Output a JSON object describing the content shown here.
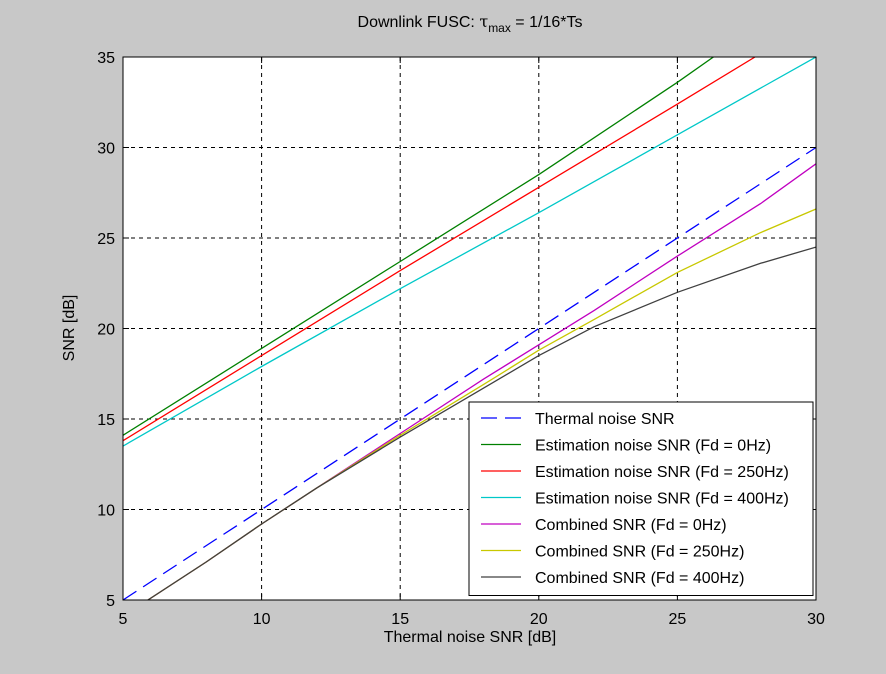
{
  "chart_data": {
    "type": "line",
    "title": {
      "prefix": "Downlink FUSC: ",
      "symbol": "τ",
      "subscript": "max",
      "suffix": " = 1/16*Ts"
    },
    "xlabel": "Thermal noise SNR [dB]",
    "ylabel": "SNR [dB]",
    "xlim": [
      5,
      30
    ],
    "ylim": [
      5,
      35
    ],
    "xticks": [
      5,
      10,
      15,
      20,
      25,
      30
    ],
    "yticks": [
      5,
      10,
      15,
      20,
      25,
      30,
      35
    ],
    "xtick_labels": [
      "5",
      "10",
      "15",
      "20",
      "25",
      "30"
    ],
    "ytick_labels": [
      "5",
      "10",
      "15",
      "20",
      "25",
      "30",
      "35"
    ],
    "grid": true,
    "legend_position": "lower-right",
    "series": [
      {
        "name": "Thermal noise SNR",
        "color": "#0000ff",
        "dash": true,
        "x": [
          5,
          30
        ],
        "y": [
          5,
          30
        ]
      },
      {
        "name": "Estimation noise SNR (Fd = 0Hz)",
        "color": "#008000",
        "dash": false,
        "x": [
          5,
          10,
          15,
          20,
          25,
          26.3
        ],
        "y": [
          14.1,
          18.9,
          23.7,
          28.5,
          33.6,
          35
        ]
      },
      {
        "name": "Estimation noise SNR (Fd = 250Hz)",
        "color": "#ff0000",
        "dash": false,
        "x": [
          5,
          10,
          15,
          20,
          25,
          27.8
        ],
        "y": [
          13.8,
          18.5,
          23.2,
          27.8,
          32.4,
          35
        ]
      },
      {
        "name": "Estimation noise SNR (Fd = 400Hz)",
        "color": "#00c8c8",
        "dash": false,
        "x": [
          5,
          10,
          15,
          20,
          25,
          30
        ],
        "y": [
          13.5,
          17.9,
          22.2,
          26.4,
          30.7,
          35
        ]
      },
      {
        "name": "Combined SNR (Fd = 0Hz)",
        "color": "#c000c0",
        "dash": false,
        "x": [
          5.9,
          8,
          10,
          12,
          15,
          18,
          20,
          22,
          25,
          28,
          30
        ],
        "y": [
          5,
          7.1,
          9.2,
          11.2,
          14.2,
          17.2,
          19.1,
          21,
          24,
          26.9,
          29.1
        ]
      },
      {
        "name": "Combined SNR (Fd = 250Hz)",
        "color": "#c8c800",
        "dash": false,
        "x": [
          5.9,
          8,
          10,
          12,
          15,
          18,
          20,
          22,
          25,
          28,
          30
        ],
        "y": [
          5,
          7.1,
          9.2,
          11.2,
          14.1,
          16.9,
          18.8,
          20.5,
          23.1,
          25.3,
          26.6
        ]
      },
      {
        "name": "Combined SNR (Fd = 400Hz)",
        "color": "#404040",
        "dash": false,
        "x": [
          5.9,
          8,
          10,
          12,
          15,
          18,
          20,
          22,
          25,
          28,
          30
        ],
        "y": [
          5,
          7.1,
          9.2,
          11.2,
          14,
          16.7,
          18.5,
          20.1,
          22,
          23.6,
          24.5
        ]
      }
    ]
  }
}
